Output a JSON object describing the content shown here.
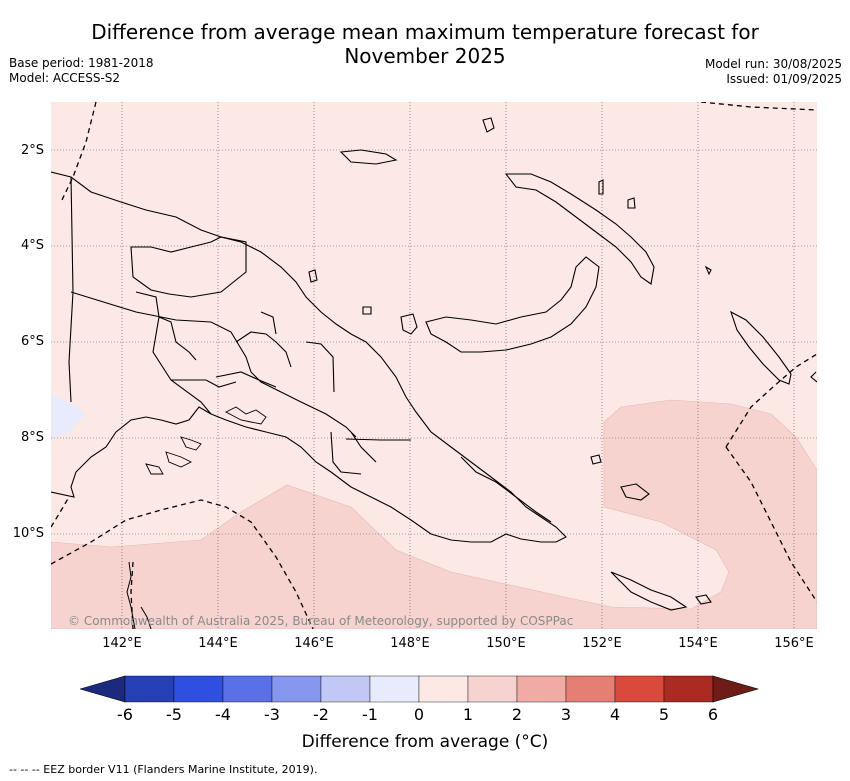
{
  "title_line1": "Difference from average mean maximum temperature forecast for",
  "title_line2": "November 2025",
  "base_period": "Base period: 1981-2018",
  "model": "Model: ACCESS-S2",
  "model_run": "Model run: 30/08/2025",
  "issued": "Issued: 01/09/2025",
  "lat_labels": [
    "2°S",
    "4°S",
    "6°S",
    "8°S",
    "10°S"
  ],
  "lon_labels": [
    "142°E",
    "144°E",
    "146°E",
    "148°E",
    "150°E",
    "152°E",
    "154°E",
    "156°E"
  ],
  "credit": "© Commonwealth of Australia 2025, Bureau of Meteorology, supported by COSPPac",
  "colorbar": {
    "ticks": [
      "-6",
      "-5",
      "-4",
      "-3",
      "-2",
      "-1",
      "0",
      "1",
      "2",
      "3",
      "4",
      "5",
      "6"
    ],
    "colors": [
      "#1b2a7e",
      "#253fb5",
      "#2f4fe0",
      "#5a70e6",
      "#8697ee",
      "#c1c8f5",
      "#e8ebfb",
      "#fce9e6",
      "#f7d3cf",
      "#f0aca4",
      "#e57f74",
      "#d94a3c",
      "#ab2a22",
      "#6f1c17"
    ],
    "label": "Difference from average (°C)"
  },
  "legend_note": "--  --  -- EEZ border V11 (Flanders Marine Institute, 2019).",
  "colors": {
    "anomaly_0_to_1": "#fce9e6",
    "anomaly_1_to_2": "#f7d3cf",
    "anomaly_minus1_to_0": "#e8ebfb"
  }
}
